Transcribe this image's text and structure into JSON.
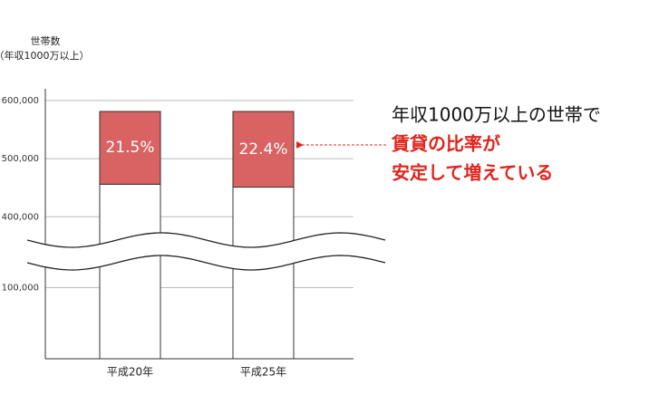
{
  "chart_data": {
    "type": "stacked-bar",
    "y_label_lines": [
      "世帯数",
      "（年収1000万以上）"
    ],
    "categories": [
      "平成20年",
      "平成25年"
    ],
    "series": [
      {
        "values": [
          456000,
          451000
        ],
        "color": "#ffffff"
      },
      {
        "values": [
          125000,
          130000
        ],
        "color": "#d96262"
      }
    ],
    "share_labels": [
      "21.5%",
      "22.4%"
    ],
    "ylim": [
      0,
      620000
    ],
    "y_break": [
      135000,
      360000
    ],
    "yticks": [
      {
        "value": 100000,
        "label": "100,000"
      },
      {
        "value": 400000,
        "label": "400,000"
      },
      {
        "value": 500000,
        "label": "500,000"
      },
      {
        "value": 600000,
        "label": "600,000"
      }
    ],
    "grid": true,
    "annotation_lines": [
      "年収1000万以上の世帯で",
      "賃貸の比率が",
      "安定して増えている"
    ],
    "annotation_colors": [
      "#111111",
      "#e0241c",
      "#e0241c"
    ]
  }
}
